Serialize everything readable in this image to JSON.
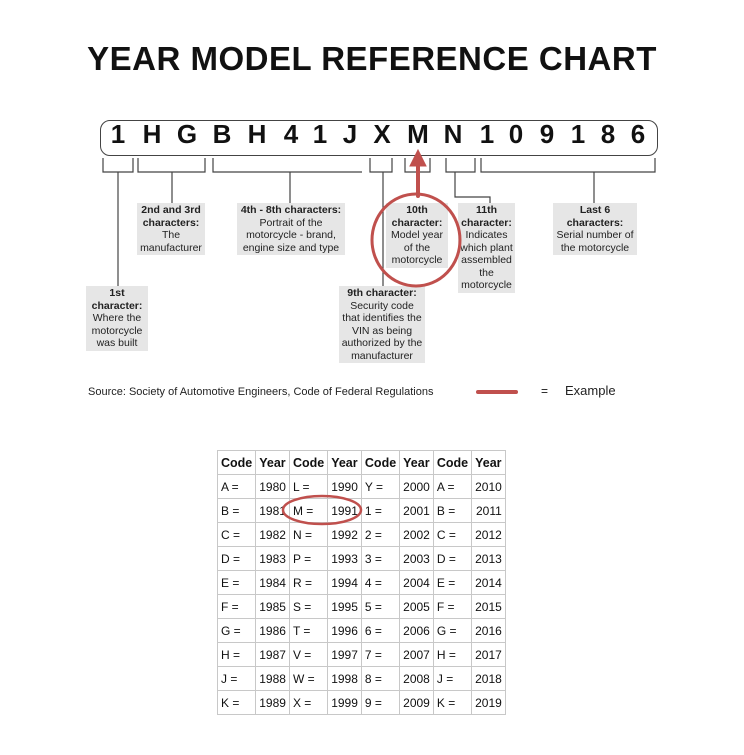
{
  "title": "YEAR MODEL REFERENCE CHART",
  "vin": [
    "1",
    "H",
    "G",
    "B",
    "H",
    "4",
    "1",
    "J",
    "X",
    "M",
    "N",
    "1",
    "0",
    "9",
    "1",
    "8",
    "6"
  ],
  "callouts": {
    "c1": {
      "head": "1st character:",
      "body": "Where the motorcycle was built"
    },
    "c23": {
      "head": "2nd and 3rd characters:",
      "body": "The manufacturer"
    },
    "c48": {
      "head": "4th - 8th characters:",
      "body": "Portrait of the motorcycle - brand, engine size and type"
    },
    "c9": {
      "head": "9th character:",
      "body": "Security code that identifies the VIN as being authorized by the manufacturer"
    },
    "c10": {
      "head": "10th character:",
      "body": "Model year of the motorcycle"
    },
    "c11": {
      "head": "11th character:",
      "body": "Indicates which plant assembled the motorcycle"
    },
    "c_last": {
      "head": "Last 6 characters:",
      "body": "Serial number of the motorcycle"
    }
  },
  "source": "Source:  Society of Automotive Engineers, Code of Federal Regulations",
  "legend": {
    "equals": "=",
    "label": "Example",
    "color": "#c0504d"
  },
  "highlight_color": "#c0504d",
  "table": {
    "headers": [
      "Code",
      "Year",
      "Code",
      "Year",
      "Code",
      "Year",
      "Code",
      "Year"
    ],
    "rows": [
      [
        "A =",
        "1980",
        "L =",
        "1990",
        "Y =",
        "2000",
        "A =",
        "2010"
      ],
      [
        "B =",
        "1981",
        "M =",
        "1991",
        "1 =",
        "2001",
        "B =",
        "2011"
      ],
      [
        "C =",
        "1982",
        "N =",
        "1992",
        "2 =",
        "2002",
        "C =",
        "2012"
      ],
      [
        "D =",
        "1983",
        "P =",
        "1993",
        "3 =",
        "2003",
        "D =",
        "2013"
      ],
      [
        "E =",
        "1984",
        "R =",
        "1994",
        "4 =",
        "2004",
        "E =",
        "2014"
      ],
      [
        "F =",
        "1985",
        "S =",
        "1995",
        "5 =",
        "2005",
        "F =",
        "2015"
      ],
      [
        "G =",
        "1986",
        "T =",
        "1996",
        "6 =",
        "2006",
        "G =",
        "2016"
      ],
      [
        "H =",
        "1987",
        "V =",
        "1997",
        "7 =",
        "2007",
        "H =",
        "2017"
      ],
      [
        "J =",
        "1988",
        "W =",
        "1998",
        "8 =",
        "2008",
        "J =",
        "2018"
      ],
      [
        "K =",
        "1989",
        "X =",
        "1999",
        "9 =",
        "2009",
        "K =",
        "2019"
      ]
    ]
  }
}
